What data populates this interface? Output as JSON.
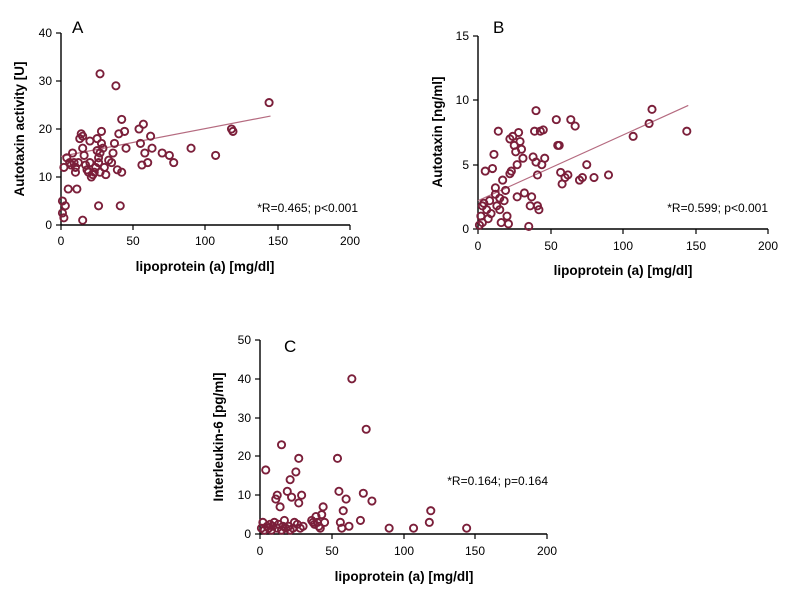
{
  "colors": {
    "marker": "#7b1f3a",
    "fit_line": "#b56b80",
    "axis": "#000000"
  },
  "chart_data": [
    {
      "type": "scatter",
      "panel": "A",
      "xlabel": "lipoprotein (a) [mg/dl]",
      "ylabel": "Autotaxin activity [U]",
      "xlim": [
        0,
        200
      ],
      "ylim": [
        0,
        40
      ],
      "xticks": [
        "0",
        "50",
        "100",
        "150",
        "200"
      ],
      "yticks": [
        "0",
        "10",
        "20",
        "30",
        "40"
      ],
      "annotation": "*R=0.465; p<0.001",
      "fit": {
        "x": [
          0,
          145
        ],
        "y": [
          14.3,
          22.7
        ]
      },
      "points": [
        [
          1,
          5
        ],
        [
          1,
          2.5
        ],
        [
          2,
          1.5
        ],
        [
          3,
          4
        ],
        [
          2,
          12
        ],
        [
          4,
          14
        ],
        [
          5,
          7.5
        ],
        [
          6,
          13
        ],
        [
          7,
          12.5
        ],
        [
          8,
          15
        ],
        [
          9,
          13
        ],
        [
          10,
          12
        ],
        [
          10,
          11
        ],
        [
          11,
          7.5
        ],
        [
          12,
          13
        ],
        [
          13,
          18
        ],
        [
          14,
          19
        ],
        [
          15,
          18.5
        ],
        [
          15,
          16
        ],
        [
          16,
          14.5
        ],
        [
          17,
          12.5
        ],
        [
          18,
          11.5
        ],
        [
          19,
          11
        ],
        [
          20,
          17.5
        ],
        [
          20,
          13
        ],
        [
          21,
          10
        ],
        [
          22,
          10.5
        ],
        [
          23,
          11
        ],
        [
          24,
          12
        ],
        [
          25,
          18
        ],
        [
          25,
          15.5
        ],
        [
          26,
          14
        ],
        [
          26,
          13
        ],
        [
          27,
          11
        ],
        [
          27,
          15
        ],
        [
          28,
          19.5
        ],
        [
          28,
          17
        ],
        [
          29,
          16
        ],
        [
          30,
          12
        ],
        [
          31,
          10.5
        ],
        [
          33,
          13.5
        ],
        [
          35,
          13
        ],
        [
          36,
          15
        ],
        [
          37,
          17
        ],
        [
          38,
          29
        ],
        [
          39,
          11.5
        ],
        [
          40,
          19
        ],
        [
          41,
          4
        ],
        [
          42,
          22
        ],
        [
          42,
          11
        ],
        [
          44,
          19.5
        ],
        [
          45,
          16
        ],
        [
          15,
          1
        ],
        [
          26,
          4
        ],
        [
          27,
          31.5
        ],
        [
          54,
          20
        ],
        [
          55,
          17
        ],
        [
          56,
          12.5
        ],
        [
          57,
          21
        ],
        [
          58,
          15
        ],
        [
          60,
          13
        ],
        [
          62,
          18.5
        ],
        [
          63,
          16
        ],
        [
          70,
          15
        ],
        [
          75,
          14.5
        ],
        [
          78,
          13
        ],
        [
          90,
          16
        ],
        [
          107,
          14.5
        ],
        [
          118,
          20
        ],
        [
          119,
          19.5
        ],
        [
          144,
          25.5
        ]
      ]
    },
    {
      "type": "scatter",
      "panel": "B",
      "xlabel": "lipoprotein (a) [mg/dl]",
      "ylabel": "Autotaxin  [ng/ml]",
      "xlim": [
        0,
        200
      ],
      "ylim": [
        0,
        15
      ],
      "xticks": [
        "0",
        "50",
        "100",
        "150",
        "200"
      ],
      "yticks": [
        "0",
        "5",
        "10",
        "15"
      ],
      "annotation": "*R=0.599; p<0.001",
      "fit": {
        "x": [
          0,
          145
        ],
        "y": [
          2.2,
          9.6
        ]
      },
      "points": [
        [
          1,
          0.3
        ],
        [
          2,
          1
        ],
        [
          3,
          1.8
        ],
        [
          3,
          0.5
        ],
        [
          4,
          2
        ],
        [
          5,
          4.5
        ],
        [
          6,
          1.5
        ],
        [
          7,
          0.8
        ],
        [
          8,
          2.2
        ],
        [
          9,
          1.2
        ],
        [
          10,
          4.7
        ],
        [
          11,
          5.8
        ],
        [
          12,
          2.7
        ],
        [
          12,
          3.2
        ],
        [
          13,
          1.8
        ],
        [
          14,
          7.6
        ],
        [
          15,
          2.4
        ],
        [
          15,
          1.5
        ],
        [
          16,
          0.5
        ],
        [
          17,
          3.8
        ],
        [
          18,
          2.2
        ],
        [
          19,
          3
        ],
        [
          20,
          1
        ],
        [
          21,
          0.4
        ],
        [
          22,
          7
        ],
        [
          22,
          4.3
        ],
        [
          23,
          4.5
        ],
        [
          24,
          7.2
        ],
        [
          25,
          6.5
        ],
        [
          26,
          6
        ],
        [
          27,
          2.5
        ],
        [
          27,
          5
        ],
        [
          28,
          7.5
        ],
        [
          29,
          6.8
        ],
        [
          30,
          6.2
        ],
        [
          31,
          5.5
        ],
        [
          32,
          2.8
        ],
        [
          35,
          0.2
        ],
        [
          36,
          1.8
        ],
        [
          37,
          2.5
        ],
        [
          38,
          5.6
        ],
        [
          39,
          7.6
        ],
        [
          40,
          9.2
        ],
        [
          40,
          5.2
        ],
        [
          41,
          4.2
        ],
        [
          41,
          1.8
        ],
        [
          42,
          1.5
        ],
        [
          43,
          7.6
        ],
        [
          44,
          5
        ],
        [
          45,
          7.7
        ],
        [
          46,
          5.5
        ],
        [
          54,
          8.5
        ],
        [
          55,
          6.5
        ],
        [
          56,
          6.5
        ],
        [
          57,
          4.4
        ],
        [
          58,
          3.5
        ],
        [
          60,
          4
        ],
        [
          62,
          4.2
        ],
        [
          64,
          8.5
        ],
        [
          67,
          8
        ],
        [
          70,
          3.8
        ],
        [
          72,
          4
        ],
        [
          75,
          5
        ],
        [
          80,
          4
        ],
        [
          90,
          4.2
        ],
        [
          107,
          7.2
        ],
        [
          118,
          8.2
        ],
        [
          120,
          9.3
        ],
        [
          144,
          7.6
        ]
      ]
    },
    {
      "type": "scatter",
      "panel": "C",
      "xlabel": "lipoprotein (a) [mg/dl]",
      "ylabel": "Interleukin-6 [pg/ml]",
      "xlim": [
        0,
        200
      ],
      "ylim": [
        0,
        50
      ],
      "xticks": [
        "0",
        "50",
        "100",
        "150",
        "200"
      ],
      "yticks": [
        "0",
        "10",
        "20",
        "30",
        "40",
        "50"
      ],
      "annotation": "*R=0.164; p=0.164",
      "points": [
        [
          1,
          1.5
        ],
        [
          2,
          3
        ],
        [
          3,
          1
        ],
        [
          4,
          16.5
        ],
        [
          5,
          2
        ],
        [
          6,
          1.5
        ],
        [
          7,
          2.5
        ],
        [
          8,
          1
        ],
        [
          9,
          2
        ],
        [
          10,
          3
        ],
        [
          11,
          9
        ],
        [
          12,
          10
        ],
        [
          12,
          1.5
        ],
        [
          13,
          2.5
        ],
        [
          14,
          7
        ],
        [
          15,
          1
        ],
        [
          15,
          23
        ],
        [
          16,
          2
        ],
        [
          17,
          3.5
        ],
        [
          18,
          1.5
        ],
        [
          19,
          11
        ],
        [
          20,
          2
        ],
        [
          21,
          14
        ],
        [
          21,
          1
        ],
        [
          22,
          9.5
        ],
        [
          23,
          1.5
        ],
        [
          24,
          3
        ],
        [
          25,
          16
        ],
        [
          26,
          2.5
        ],
        [
          27,
          8
        ],
        [
          27,
          19.5
        ],
        [
          28,
          1.5
        ],
        [
          29,
          10
        ],
        [
          30,
          2
        ],
        [
          36,
          3.5
        ],
        [
          37,
          3
        ],
        [
          38,
          2.5
        ],
        [
          39,
          4.5
        ],
        [
          40,
          3
        ],
        [
          41,
          2
        ],
        [
          42,
          1.5
        ],
        [
          43,
          5
        ],
        [
          44,
          7
        ],
        [
          45,
          3
        ],
        [
          54,
          19.5
        ],
        [
          55,
          11
        ],
        [
          56,
          3
        ],
        [
          57,
          1.5
        ],
        [
          58,
          6
        ],
        [
          60,
          9
        ],
        [
          62,
          2
        ],
        [
          64,
          40
        ],
        [
          70,
          3.5
        ],
        [
          72,
          10.5
        ],
        [
          74,
          27
        ],
        [
          78,
          8.5
        ],
        [
          90,
          1.5
        ],
        [
          107,
          1.5
        ],
        [
          118,
          3
        ],
        [
          119,
          6
        ],
        [
          144,
          1.5
        ]
      ]
    }
  ]
}
